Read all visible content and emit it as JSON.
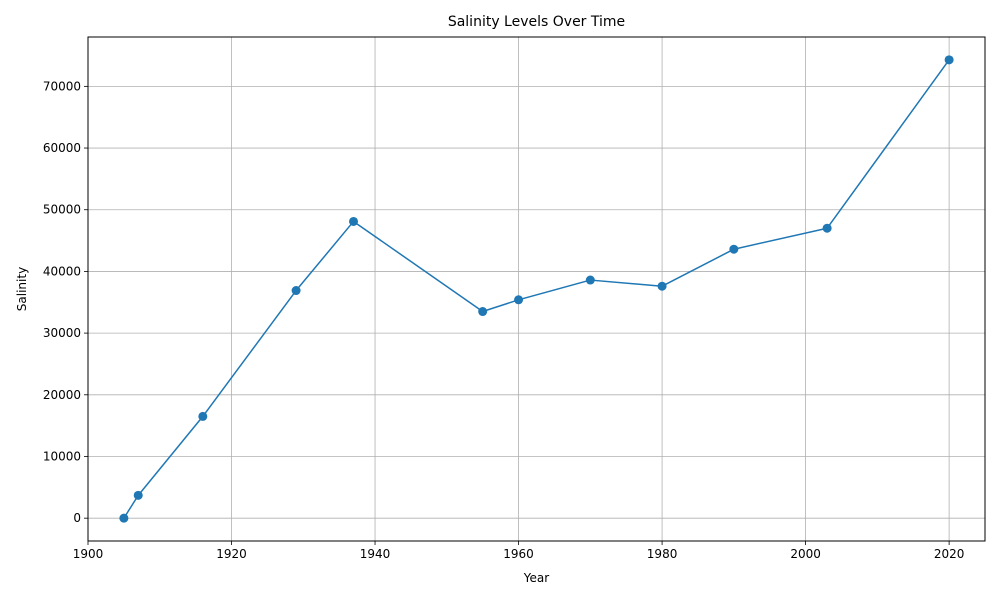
{
  "chart_data": {
    "type": "line",
    "title": "Salinity Levels Over Time",
    "xlabel": "Year",
    "ylabel": "Salinity",
    "xlim": [
      1900,
      2025
    ],
    "ylim": [
      -3700,
      78000
    ],
    "xticks": [
      1900,
      1920,
      1940,
      1960,
      1980,
      2000,
      2020
    ],
    "yticks": [
      0,
      10000,
      20000,
      30000,
      40000,
      50000,
      60000,
      70000
    ],
    "grid": true,
    "color": "#1f77b4",
    "marker": "circle",
    "x": [
      1905,
      1907,
      1916,
      1929,
      1937,
      1955,
      1960,
      1970,
      1980,
      1990,
      2003,
      2020
    ],
    "y": [
      0,
      3700,
      16500,
      36900,
      48100,
      33500,
      35400,
      38600,
      37600,
      43600,
      47000,
      74300
    ]
  }
}
